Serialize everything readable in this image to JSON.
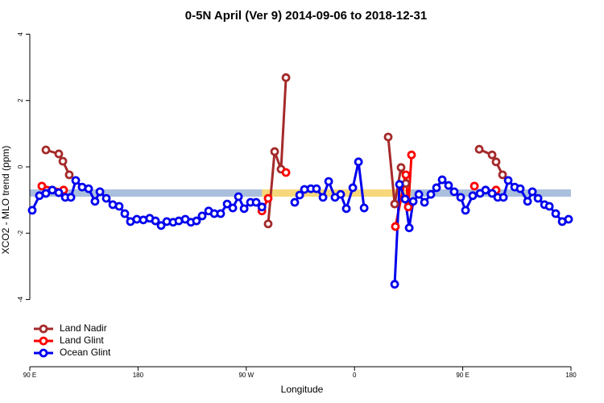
{
  "chart_data": {
    "type": "line",
    "title": "0-5N April (Ver 9)   2014-09-06 to 2018-12-31",
    "xlabel": "Longitude",
    "ylabel": "XCO2 - MLO trend (ppm)",
    "xlim": [
      90,
      540
    ],
    "ylim": [
      -6.1,
      4.1
    ],
    "xticks": [
      {
        "value": 90,
        "label": "90 E"
      },
      180,
      {
        "value": 270,
        "label": "90 W"
      },
      {
        "value": 360,
        "label": "0"
      },
      {
        "value": 450,
        "label": "90 E"
      },
      {
        "value": 540,
        "label": "180"
      }
    ],
    "yticks": [
      -4,
      -2,
      0,
      2,
      4
    ],
    "legend": "bottom-left",
    "bands": [
      {
        "xlim": [
          90,
          540
        ],
        "ylim": [
          -0.9,
          -0.68
        ],
        "color": "#a9bfdc"
      },
      {
        "xlim": [
          283,
          407
        ],
        "ylim": [
          -0.9,
          -0.68
        ],
        "color": "#f8d77a"
      }
    ],
    "series": [
      {
        "name": "Land Nadir",
        "color": "#a52a2a",
        "x": [
          103.4,
          114.1,
          117.5,
          122.8,
          null,
          288.2,
          293.6,
          298.9,
          303,
          null,
          388,
          393.4,
          398.7,
          402.7,
          null,
          463.7,
          474.4,
          477.7,
          483.1
        ],
        "values": [
          0.51,
          0.39,
          0.17,
          -0.24,
          null,
          -1.72,
          0.46,
          -0.07,
          2.69,
          null,
          0.9,
          -1.12,
          -0.02,
          -0.5,
          null,
          0.53,
          0.36,
          0.15,
          -0.24
        ]
      },
      {
        "name": "Land Glint",
        "color": "#ff0000",
        "x": [
          100,
          118.1,
          null,
          283,
          288.2,
          null,
          303,
          null,
          394,
          402.7,
          404.7,
          407.4,
          null,
          459.7,
          null,
          477.7
        ],
        "values": [
          -0.58,
          -0.7,
          null,
          -1.33,
          -0.95,
          null,
          -0.17,
          null,
          -1.8,
          -0.24,
          -1.21,
          0.36,
          null,
          -0.58,
          null,
          -0.7
        ]
      },
      {
        "name": "Ocean Glint",
        "color": "#0000ee",
        "x": [
          92,
          98,
          103.4,
          108.7,
          114.1,
          119.5,
          124.2,
          128.2,
          133.5,
          138.9,
          144.2,
          148.3,
          153.6,
          159,
          164.3,
          169,
          173.7,
          179,
          184.4,
          189.7,
          194.5,
          199.2,
          203.9,
          209.2,
          213.9,
          219.3,
          224,
          228.6,
          233.3,
          238.7,
          243.4,
          248.7,
          254.1,
          258.8,
          263.5,
          268.2,
          273.5,
          278.2,
          283,
          null,
          310.3,
          314.4,
          318.4,
          323.7,
          328.4,
          333.8,
          338.5,
          343.8,
          348.5,
          353.2,
          358.6,
          363.3,
          368,
          null,
          393.4,
          397.4,
          402.1,
          405.5,
          408.8,
          413.5,
          418.2,
          423.5,
          428.2,
          432.9,
          438.2,
          442.9,
          448.3,
          452.3,
          458.3,
          464.4,
          469,
          474.4,
          479.1,
          483.8,
          487.8,
          493.2,
          497.8,
          503.9,
          507.9,
          512.6,
          518,
          522,
          527.3,
          532.7,
          538
        ],
        "values": [
          -1.31,
          -0.87,
          -0.8,
          -0.7,
          -0.78,
          -0.92,
          -0.92,
          -0.41,
          -0.61,
          -0.66,
          -1.04,
          -0.75,
          -0.95,
          -1.14,
          -1.19,
          -1.41,
          -1.65,
          -1.58,
          -1.6,
          -1.55,
          -1.63,
          -1.77,
          -1.65,
          -1.67,
          -1.63,
          -1.58,
          -1.67,
          -1.63,
          -1.48,
          -1.33,
          -1.41,
          -1.41,
          -1.12,
          -1.24,
          -0.9,
          -1.26,
          -1.07,
          -1.07,
          -1.21,
          null,
          -1.07,
          -0.85,
          -0.68,
          -0.66,
          -0.66,
          -0.92,
          -0.44,
          -0.92,
          -0.83,
          -1.26,
          -0.63,
          0.15,
          -1.24,
          null,
          -3.54,
          -0.53,
          -0.97,
          -1.84,
          -1.04,
          -0.83,
          -1.07,
          -0.83,
          -0.63,
          -0.39,
          -0.56,
          -0.75,
          -0.92,
          -1.31,
          -0.87,
          -0.8,
          -0.7,
          -0.8,
          -0.92,
          -0.92,
          -0.41,
          -0.61,
          -0.66,
          -1.04,
          -0.75,
          -0.95,
          -1.14,
          -1.19,
          -1.41,
          -1.65,
          -1.58
        ]
      }
    ]
  }
}
